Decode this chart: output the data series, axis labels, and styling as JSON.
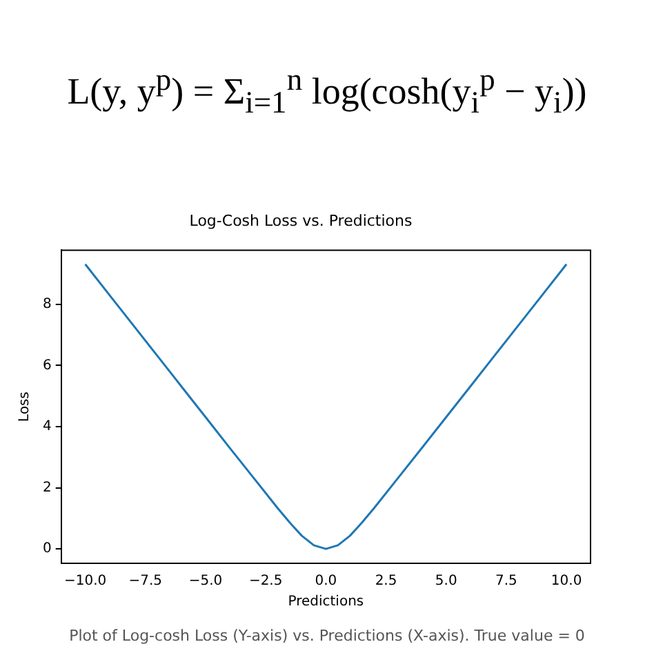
{
  "chart_data": {
    "type": "line",
    "title": "Log-Cosh Loss vs. Predictions",
    "xlabel": "Predictions",
    "ylabel": "Loss",
    "annotations": [
      "L(y, y$^{p}$) = Σ$_{i=1}$$^{n}$ log(cosh(y$_{i}$$^{p}$ − y$_{i}$))",
      "Plot of Log-cosh Loss (Y-axis) vs. Predictions (X-axis). True value = 0"
    ],
    "series": [
      {
        "color": "#1f77b4",
        "x": [
          -10,
          -9,
          -8,
          -7,
          -6,
          -5,
          -4,
          -3,
          -2,
          -1.5,
          -1,
          -0.5,
          0,
          0.5,
          1,
          1.5,
          2,
          3,
          4,
          5,
          6,
          7,
          8,
          9,
          10
        ],
        "values": [
          9.31,
          8.31,
          7.31,
          6.31,
          5.31,
          4.31,
          3.31,
          2.32,
          1.33,
          0.86,
          0.43,
          0.12,
          0,
          0.12,
          0.43,
          0.86,
          1.33,
          2.32,
          3.31,
          4.31,
          5.31,
          6.31,
          7.31,
          8.31,
          9.31
        ]
      }
    ],
    "xlim": [
      -11,
      11
    ],
    "ylim": [
      -0.47,
      9.77
    ],
    "xticks": [
      {
        "value": -10,
        "label": "−10.0"
      },
      {
        "value": -7.5,
        "label": "−7.5"
      },
      {
        "value": -5,
        "label": "−5.0"
      },
      {
        "value": -2.5,
        "label": "−2.5"
      },
      {
        "value": 0,
        "label": "0.0"
      },
      {
        "value": 2.5,
        "label": "2.5"
      },
      {
        "value": 5,
        "label": "5.0"
      },
      {
        "value": 7.5,
        "label": "7.5"
      },
      {
        "value": 10,
        "label": "10.0"
      }
    ],
    "yticks": [
      0,
      2,
      4,
      6,
      8
    ],
    "grid": false,
    "legend": false,
    "marker": "none",
    "line_style": "solid"
  }
}
